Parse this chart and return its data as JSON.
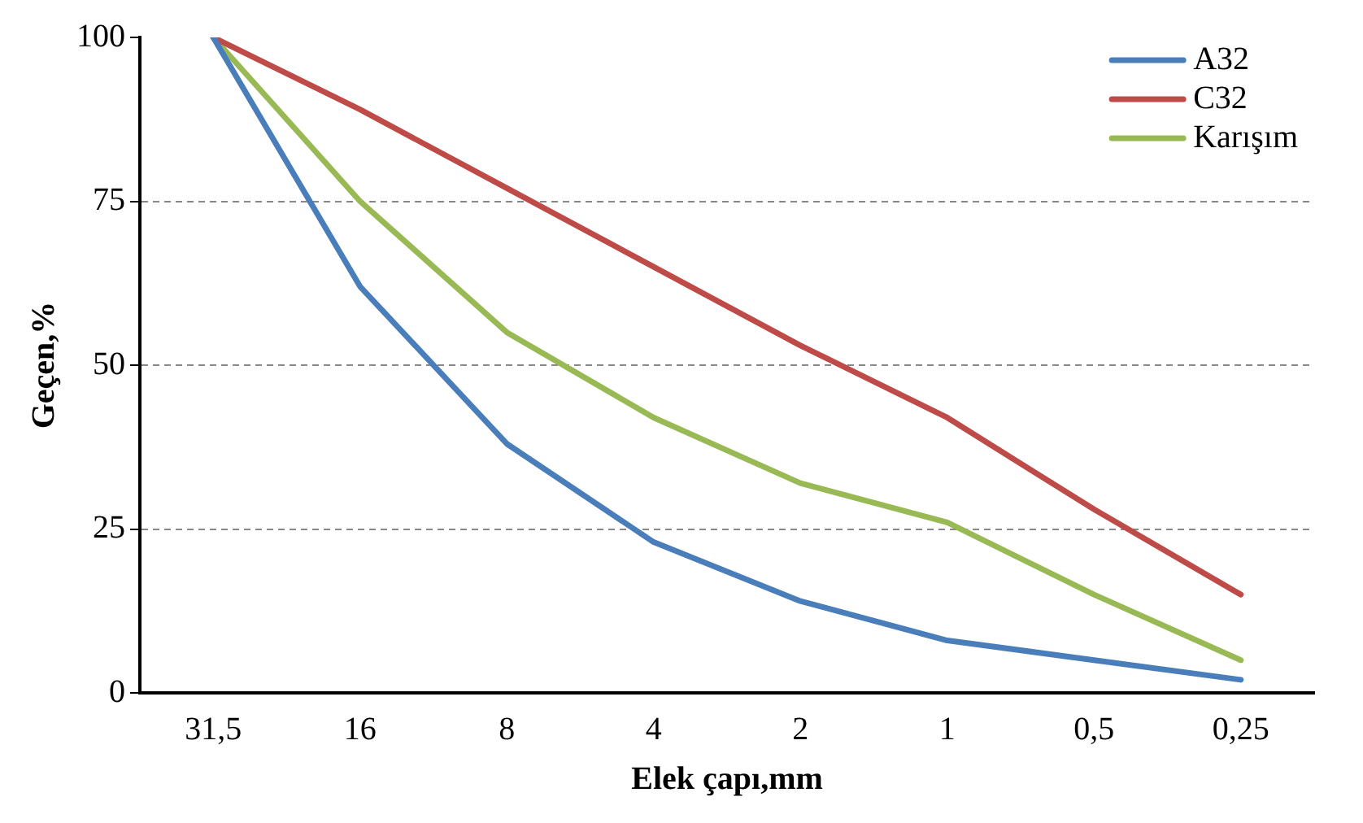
{
  "chart_data": {
    "type": "line",
    "xlabel": "Elek çapı,mm",
    "ylabel": "Geçen,%",
    "categories": [
      "31,5",
      "16",
      "8",
      "4",
      "2",
      "1",
      "0,5",
      "0,25"
    ],
    "series": [
      {
        "name": "A32",
        "color": "#4a7ebb",
        "values": [
          100,
          62,
          38,
          23,
          14,
          8,
          5,
          2
        ]
      },
      {
        "name": "C32",
        "color": "#be4b48",
        "values": [
          100,
          89,
          77,
          65,
          53,
          42,
          28,
          15
        ]
      },
      {
        "name": "Karışım",
        "color": "#98b954",
        "values": [
          100,
          75,
          55,
          42,
          32,
          26,
          15,
          5
        ]
      }
    ],
    "ylim": [
      0,
      100
    ],
    "yticks": [
      0,
      25,
      50,
      75,
      100
    ],
    "grid": "y",
    "legend": "top right",
    "marker": "none",
    "line_style": "solid"
  }
}
